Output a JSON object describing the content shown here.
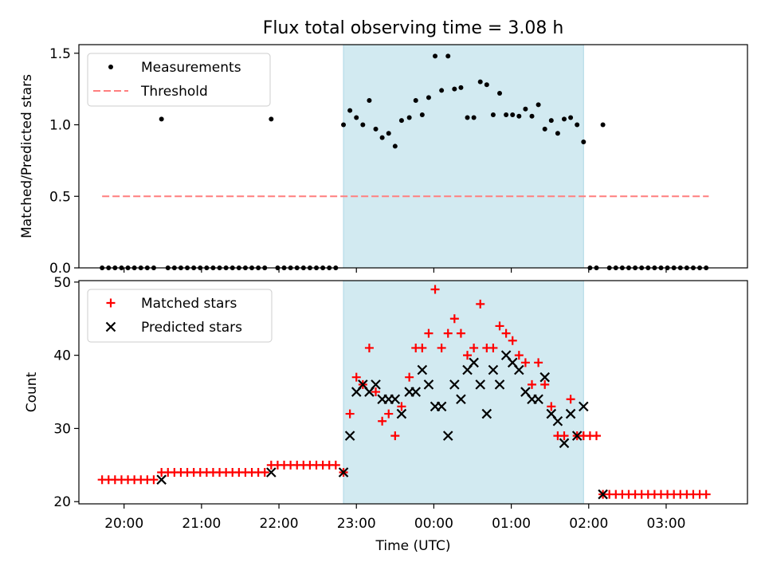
{
  "title": "Flux total observing time = 3.08 h",
  "chart_data": [
    {
      "type": "scatter",
      "ylabel": "Matched/Predicted stars",
      "xlabel": "",
      "ylim": [
        0.0,
        1.56
      ],
      "yticks": [
        0.0,
        0.5,
        1.0,
        1.5
      ],
      "xlim": [
        "19:25",
        "04:03"
      ],
      "highlight_span": [
        "22:50",
        "01:56"
      ],
      "highlight_color": "#add8e6",
      "legend": {
        "placement": "top-left",
        "entries": [
          {
            "label": "Measurements",
            "marker": "dot",
            "color": "#000000"
          },
          {
            "label": "Threshold",
            "marker": "dashed-line",
            "color": "#ff7f7f"
          }
        ]
      },
      "threshold": {
        "y": 0.5,
        "x_range": [
          "19:43",
          "03:33"
        ]
      },
      "series": [
        {
          "name": "Measurements",
          "points": [
            [
              "19:43",
              0
            ],
            [
              "19:48",
              0
            ],
            [
              "19:53",
              0
            ],
            [
              "19:58",
              0
            ],
            [
              "20:03",
              0
            ],
            [
              "20:08",
              0
            ],
            [
              "20:13",
              0
            ],
            [
              "20:18",
              0
            ],
            [
              "20:23",
              0
            ],
            [
              "20:29",
              1.04
            ],
            [
              "20:34",
              0
            ],
            [
              "20:39",
              0
            ],
            [
              "20:44",
              0
            ],
            [
              "20:49",
              0
            ],
            [
              "20:54",
              0
            ],
            [
              "20:59",
              0
            ],
            [
              "21:04",
              0
            ],
            [
              "21:09",
              0
            ],
            [
              "21:14",
              0
            ],
            [
              "21:19",
              0
            ],
            [
              "21:24",
              0
            ],
            [
              "21:29",
              0
            ],
            [
              "21:34",
              0
            ],
            [
              "21:39",
              0
            ],
            [
              "21:44",
              0
            ],
            [
              "21:49",
              0
            ],
            [
              "21:54",
              1.04
            ],
            [
              "21:59",
              0
            ],
            [
              "22:04",
              0
            ],
            [
              "22:09",
              0
            ],
            [
              "22:14",
              0
            ],
            [
              "22:19",
              0
            ],
            [
              "22:24",
              0
            ],
            [
              "22:29",
              0
            ],
            [
              "22:34",
              0
            ],
            [
              "22:39",
              0
            ],
            [
              "22:44",
              0
            ],
            [
              "22:50",
              1.0
            ],
            [
              "22:55",
              1.1
            ],
            [
              "23:00",
              1.05
            ],
            [
              "23:05",
              1.0
            ],
            [
              "23:10",
              1.17
            ],
            [
              "23:15",
              0.97
            ],
            [
              "23:20",
              0.91
            ],
            [
              "23:25",
              0.94
            ],
            [
              "23:30",
              0.85
            ],
            [
              "23:35",
              1.03
            ],
            [
              "23:41",
              1.05
            ],
            [
              "23:46",
              1.17
            ],
            [
              "23:51",
              1.07
            ],
            [
              "23:56",
              1.19
            ],
            [
              "00:01",
              1.48
            ],
            [
              "00:06",
              1.24
            ],
            [
              "00:11",
              1.48
            ],
            [
              "00:16",
              1.25
            ],
            [
              "00:21",
              1.26
            ],
            [
              "00:26",
              1.05
            ],
            [
              "00:31",
              1.05
            ],
            [
              "00:36",
              1.3
            ],
            [
              "00:41",
              1.28
            ],
            [
              "00:46",
              1.07
            ],
            [
              "00:51",
              1.22
            ],
            [
              "00:56",
              1.07
            ],
            [
              "01:01",
              1.07
            ],
            [
              "01:06",
              1.06
            ],
            [
              "01:11",
              1.11
            ],
            [
              "01:16",
              1.06
            ],
            [
              "01:21",
              1.14
            ],
            [
              "01:26",
              0.97
            ],
            [
              "01:31",
              1.03
            ],
            [
              "01:36",
              0.94
            ],
            [
              "01:41",
              1.04
            ],
            [
              "01:46",
              1.05
            ],
            [
              "01:51",
              1.0
            ],
            [
              "01:56",
              0.88
            ],
            [
              "02:01",
              0
            ],
            [
              "02:06",
              0
            ],
            [
              "02:11",
              1.0
            ],
            [
              "02:16",
              0
            ],
            [
              "02:21",
              0
            ],
            [
              "02:26",
              0
            ],
            [
              "02:31",
              0
            ],
            [
              "02:36",
              0
            ],
            [
              "02:41",
              0
            ],
            [
              "02:46",
              0
            ],
            [
              "02:51",
              0
            ],
            [
              "02:56",
              0
            ],
            [
              "03:01",
              0
            ],
            [
              "03:06",
              0
            ],
            [
              "03:11",
              0
            ],
            [
              "03:16",
              0
            ],
            [
              "03:21",
              0
            ],
            [
              "03:26",
              0
            ],
            [
              "03:31",
              0
            ]
          ]
        }
      ]
    },
    {
      "type": "scatter",
      "ylabel": "Count",
      "xlabel": "Time (UTC)",
      "ylim": [
        19.7,
        50.2
      ],
      "yticks": [
        20,
        30,
        40,
        50
      ],
      "xlim": [
        "19:25",
        "04:03"
      ],
      "xticks": [
        "20:00",
        "21:00",
        "22:00",
        "23:00",
        "00:00",
        "01:00",
        "02:00",
        "03:00"
      ],
      "highlight_span": [
        "22:50",
        "01:56"
      ],
      "highlight_color": "#add8e6",
      "legend": {
        "placement": "top-left",
        "entries": [
          {
            "label": "Matched stars",
            "marker": "plus",
            "color": "#ff0000"
          },
          {
            "label": "Predicted stars",
            "marker": "x",
            "color": "#000000"
          }
        ]
      },
      "series": [
        {
          "name": "Matched stars",
          "points": [
            [
              "19:43",
              23
            ],
            [
              "19:48",
              23
            ],
            [
              "19:53",
              23
            ],
            [
              "19:58",
              23
            ],
            [
              "20:03",
              23
            ],
            [
              "20:08",
              23
            ],
            [
              "20:13",
              23
            ],
            [
              "20:18",
              23
            ],
            [
              "20:23",
              23
            ],
            [
              "20:29",
              24
            ],
            [
              "20:34",
              24
            ],
            [
              "20:39",
              24
            ],
            [
              "20:44",
              24
            ],
            [
              "20:49",
              24
            ],
            [
              "20:54",
              24
            ],
            [
              "20:59",
              24
            ],
            [
              "21:04",
              24
            ],
            [
              "21:09",
              24
            ],
            [
              "21:14",
              24
            ],
            [
              "21:19",
              24
            ],
            [
              "21:24",
              24
            ],
            [
              "21:29",
              24
            ],
            [
              "21:34",
              24
            ],
            [
              "21:39",
              24
            ],
            [
              "21:44",
              24
            ],
            [
              "21:49",
              24
            ],
            [
              "21:54",
              25
            ],
            [
              "21:59",
              25
            ],
            [
              "22:04",
              25
            ],
            [
              "22:09",
              25
            ],
            [
              "22:14",
              25
            ],
            [
              "22:19",
              25
            ],
            [
              "22:24",
              25
            ],
            [
              "22:29",
              25
            ],
            [
              "22:34",
              25
            ],
            [
              "22:39",
              25
            ],
            [
              "22:44",
              25
            ],
            [
              "22:50",
              24
            ],
            [
              "22:55",
              32
            ],
            [
              "23:00",
              37
            ],
            [
              "23:05",
              36
            ],
            [
              "23:10",
              41
            ],
            [
              "23:15",
              35
            ],
            [
              "23:20",
              31
            ],
            [
              "23:25",
              32
            ],
            [
              "23:30",
              29
            ],
            [
              "23:35",
              33
            ],
            [
              "23:41",
              37
            ],
            [
              "23:46",
              41
            ],
            [
              "23:51",
              41
            ],
            [
              "23:56",
              43
            ],
            [
              "00:01",
              49
            ],
            [
              "00:06",
              41
            ],
            [
              "00:11",
              43
            ],
            [
              "00:16",
              45
            ],
            [
              "00:21",
              43
            ],
            [
              "00:26",
              40
            ],
            [
              "00:31",
              41
            ],
            [
              "00:36",
              47
            ],
            [
              "00:41",
              41
            ],
            [
              "00:46",
              41
            ],
            [
              "00:51",
              44
            ],
            [
              "00:56",
              43
            ],
            [
              "01:01",
              42
            ],
            [
              "01:06",
              40
            ],
            [
              "01:11",
              39
            ],
            [
              "01:16",
              36
            ],
            [
              "01:21",
              39
            ],
            [
              "01:26",
              36
            ],
            [
              "01:31",
              33
            ],
            [
              "01:36",
              29
            ],
            [
              "01:41",
              29
            ],
            [
              "01:46",
              34
            ],
            [
              "01:51",
              29
            ],
            [
              "01:56",
              29
            ],
            [
              "02:01",
              29
            ],
            [
              "02:06",
              29
            ],
            [
              "02:11",
              21
            ],
            [
              "02:16",
              21
            ],
            [
              "02:21",
              21
            ],
            [
              "02:26",
              21
            ],
            [
              "02:31",
              21
            ],
            [
              "02:36",
              21
            ],
            [
              "02:41",
              21
            ],
            [
              "02:46",
              21
            ],
            [
              "02:51",
              21
            ],
            [
              "02:56",
              21
            ],
            [
              "03:01",
              21
            ],
            [
              "03:06",
              21
            ],
            [
              "03:11",
              21
            ],
            [
              "03:16",
              21
            ],
            [
              "03:21",
              21
            ],
            [
              "03:26",
              21
            ],
            [
              "03:31",
              21
            ]
          ]
        },
        {
          "name": "Predicted stars",
          "points": [
            [
              "20:29",
              23
            ],
            [
              "21:54",
              24
            ],
            [
              "22:50",
              24
            ],
            [
              "22:55",
              29
            ],
            [
              "23:00",
              35
            ],
            [
              "23:05",
              36
            ],
            [
              "23:10",
              35
            ],
            [
              "23:15",
              36
            ],
            [
              "23:20",
              34
            ],
            [
              "23:25",
              34
            ],
            [
              "23:30",
              34
            ],
            [
              "23:35",
              32
            ],
            [
              "23:41",
              35
            ],
            [
              "23:46",
              35
            ],
            [
              "23:51",
              38
            ],
            [
              "23:56",
              36
            ],
            [
              "00:01",
              33
            ],
            [
              "00:06",
              33
            ],
            [
              "00:11",
              29
            ],
            [
              "00:16",
              36
            ],
            [
              "00:21",
              34
            ],
            [
              "00:26",
              38
            ],
            [
              "00:31",
              39
            ],
            [
              "00:36",
              36
            ],
            [
              "00:41",
              32
            ],
            [
              "00:46",
              38
            ],
            [
              "00:51",
              36
            ],
            [
              "00:56",
              40
            ],
            [
              "01:01",
              39
            ],
            [
              "01:06",
              38
            ],
            [
              "01:11",
              35
            ],
            [
              "01:16",
              34
            ],
            [
              "01:21",
              34
            ],
            [
              "01:26",
              37
            ],
            [
              "01:31",
              32
            ],
            [
              "01:36",
              31
            ],
            [
              "01:41",
              28
            ],
            [
              "01:46",
              32
            ],
            [
              "01:51",
              29
            ],
            [
              "01:56",
              33
            ],
            [
              "02:11",
              21
            ]
          ]
        }
      ]
    }
  ]
}
